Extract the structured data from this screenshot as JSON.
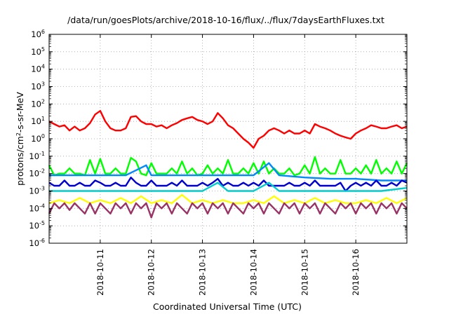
{
  "chart_data": {
    "type": "line",
    "title": "/data/run/goesPlots/archive/2018-10-16/flux/../flux/7daysEarthFluxes.txt",
    "xlabel": "Coordinated Universal Time (UTC)",
    "ylabel_parts": [
      "protons/cm",
      "2",
      "-s-sr-MeV"
    ],
    "y_scale": "log",
    "ylim": [
      1e-06,
      1000000.0
    ],
    "y_ticks": [
      {
        "base": "10",
        "exp": "6"
      },
      {
        "base": "10",
        "exp": "5"
      },
      {
        "base": "10",
        "exp": "4"
      },
      {
        "base": "10",
        "exp": "3"
      },
      {
        "base": "10",
        "exp": "2"
      },
      {
        "base": "10",
        "exp": "1"
      },
      {
        "base": "10",
        "exp": "0"
      },
      {
        "base": "10",
        "exp": "-1"
      },
      {
        "base": "10",
        "exp": "-2"
      },
      {
        "base": "10",
        "exp": "-3"
      },
      {
        "base": "10",
        "exp": "-4"
      },
      {
        "base": "10",
        "exp": "-5"
      },
      {
        "base": "10",
        "exp": "-6"
      }
    ],
    "xlim_days": [
      0,
      7
    ],
    "x_ticks": [
      {
        "label": "2018-10-11",
        "day": 1
      },
      {
        "label": "2018-10-12",
        "day": 2
      },
      {
        "label": "2018-10-13",
        "day": 3
      },
      {
        "label": "2018-10-14",
        "day": 4
      },
      {
        "label": "2018-10-15",
        "day": 5
      },
      {
        "label": "2018-10-16",
        "day": 6
      }
    ],
    "grid": true,
    "series": [
      {
        "color": "#ff0000",
        "x": [
          0,
          0.1,
          0.2,
          0.3,
          0.4,
          0.5,
          0.6,
          0.7,
          0.8,
          0.9,
          1,
          1.1,
          1.2,
          1.3,
          1.4,
          1.5,
          1.6,
          1.7,
          1.8,
          1.9,
          2,
          2.1,
          2.2,
          2.3,
          2.4,
          2.5,
          2.6,
          2.7,
          2.8,
          2.9,
          3,
          3.1,
          3.2,
          3.3,
          3.4,
          3.5,
          3.6,
          3.7,
          3.8,
          3.9,
          4,
          4.1,
          4.2,
          4.3,
          4.4,
          4.5,
          4.6,
          4.7,
          4.8,
          4.9,
          5,
          5.1,
          5.2,
          5.3,
          5.4,
          5.5,
          5.6,
          5.7,
          5.8,
          5.9,
          6,
          6.1,
          6.2,
          6.3,
          6.4,
          6.5,
          6.6,
          6.7,
          6.8,
          6.9,
          7
        ],
        "y": [
          10,
          7,
          5,
          6,
          3,
          5,
          3,
          4,
          8,
          25,
          40,
          10,
          4,
          3,
          3,
          4,
          18,
          20,
          10,
          7,
          7,
          5,
          6,
          4,
          6,
          8,
          12,
          15,
          18,
          12,
          10,
          7,
          10,
          30,
          15,
          6,
          4,
          2,
          1,
          0.6,
          0.3,
          1,
          1.5,
          3,
          4,
          3,
          2,
          3,
          2,
          2,
          3,
          2,
          7,
          5,
          4,
          3,
          2,
          1.5,
          1.2,
          1,
          2,
          3,
          4,
          6,
          5,
          4,
          4,
          5,
          6,
          4,
          5
        ]
      },
      {
        "color": "#00ff00",
        "x": [
          0,
          0.1,
          0.2,
          0.3,
          0.4,
          0.5,
          0.6,
          0.7,
          0.8,
          0.9,
          1,
          1.1,
          1.2,
          1.3,
          1.4,
          1.5,
          1.6,
          1.7,
          1.8,
          1.9,
          2,
          2.1,
          2.2,
          2.3,
          2.4,
          2.5,
          2.6,
          2.7,
          2.8,
          2.9,
          3,
          3.1,
          3.2,
          3.3,
          3.4,
          3.5,
          3.6,
          3.7,
          3.8,
          3.9,
          4,
          4.1,
          4.2,
          4.3,
          4.4,
          4.5,
          4.6,
          4.7,
          4.8,
          4.9,
          5,
          5.1,
          5.2,
          5.3,
          5.4,
          5.5,
          5.6,
          5.7,
          5.8,
          5.9,
          6,
          6.1,
          6.2,
          6.3,
          6.4,
          6.5,
          6.6,
          6.7,
          6.8,
          6.9,
          7
        ],
        "y": [
          0.03,
          0.008,
          0.01,
          0.01,
          0.02,
          0.01,
          0.01,
          0.008,
          0.06,
          0.01,
          0.07,
          0.01,
          0.01,
          0.02,
          0.01,
          0.01,
          0.08,
          0.05,
          0.01,
          0.008,
          0.04,
          0.01,
          0.01,
          0.01,
          0.02,
          0.01,
          0.05,
          0.01,
          0.02,
          0.008,
          0.01,
          0.03,
          0.01,
          0.02,
          0.01,
          0.06,
          0.01,
          0.01,
          0.02,
          0.01,
          0.04,
          0.01,
          0.05,
          0.01,
          0.02,
          0.01,
          0.01,
          0.02,
          0.008,
          0.01,
          0.03,
          0.01,
          0.09,
          0.01,
          0.02,
          0.01,
          0.01,
          0.06,
          0.01,
          0.01,
          0.02,
          0.01,
          0.03,
          0.01,
          0.06,
          0.01,
          0.02,
          0.01,
          0.05,
          0.01,
          0.04
        ]
      },
      {
        "color": "#0088ff",
        "x": [
          0,
          0.5,
          1,
          1.5,
          1.9,
          2,
          2.5,
          3,
          3.5,
          4,
          4.3,
          4.5,
          5,
          5.5,
          6,
          6.5,
          7
        ],
        "y": [
          0.008,
          0.008,
          0.008,
          0.008,
          0.03,
          0.008,
          0.008,
          0.008,
          0.008,
          0.008,
          0.04,
          0.008,
          0.006,
          0.005,
          0.005,
          0.004,
          0.004
        ]
      },
      {
        "color": "#0000cc",
        "x": [
          0,
          0.1,
          0.2,
          0.3,
          0.4,
          0.5,
          0.6,
          0.7,
          0.8,
          0.9,
          1,
          1.1,
          1.2,
          1.3,
          1.4,
          1.5,
          1.6,
          1.7,
          1.8,
          1.9,
          2,
          2.1,
          2.2,
          2.3,
          2.4,
          2.5,
          2.6,
          2.7,
          2.8,
          2.9,
          3,
          3.1,
          3.2,
          3.3,
          3.4,
          3.5,
          3.6,
          3.7,
          3.8,
          3.9,
          4,
          4.1,
          4.2,
          4.3,
          4.4,
          4.5,
          4.6,
          4.7,
          4.8,
          4.9,
          5,
          5.1,
          5.2,
          5.3,
          5.4,
          5.5,
          5.6,
          5.7,
          5.8,
          5.9,
          6,
          6.1,
          6.2,
          6.3,
          6.4,
          6.5,
          6.6,
          6.7,
          6.8,
          6.9,
          7
        ],
        "y": [
          0.003,
          0.002,
          0.002,
          0.004,
          0.002,
          0.002,
          0.003,
          0.002,
          0.002,
          0.004,
          0.003,
          0.002,
          0.002,
          0.003,
          0.002,
          0.002,
          0.006,
          0.003,
          0.002,
          0.002,
          0.004,
          0.002,
          0.002,
          0.002,
          0.003,
          0.002,
          0.004,
          0.002,
          0.002,
          0.002,
          0.003,
          0.002,
          0.003,
          0.005,
          0.002,
          0.003,
          0.002,
          0.002,
          0.003,
          0.002,
          0.003,
          0.002,
          0.004,
          0.002,
          0.002,
          0.002,
          0.002,
          0.003,
          0.002,
          0.002,
          0.003,
          0.002,
          0.004,
          0.002,
          0.002,
          0.002,
          0.002,
          0.003,
          0.001,
          0.002,
          0.003,
          0.002,
          0.003,
          0.002,
          0.004,
          0.002,
          0.002,
          0.003,
          0.002,
          0.004,
          0.003
        ]
      },
      {
        "color": "#00cccc",
        "x": [
          0,
          0.5,
          1,
          1.5,
          2,
          2.5,
          3,
          3.3,
          3.5,
          4,
          4.3,
          4.5,
          5,
          5.5,
          6,
          6.5,
          7
        ],
        "y": [
          0.001,
          0.001,
          0.001,
          0.001,
          0.001,
          0.001,
          0.001,
          0.003,
          0.001,
          0.001,
          0.003,
          0.001,
          0.001,
          0.001,
          0.001,
          0.001,
          0.0015
        ]
      },
      {
        "color": "#ffff00",
        "x": [
          0,
          0.2,
          0.4,
          0.6,
          0.8,
          1,
          1.2,
          1.4,
          1.6,
          1.8,
          2,
          2.2,
          2.4,
          2.6,
          2.8,
          3,
          3.2,
          3.4,
          3.6,
          3.8,
          4,
          4.2,
          4.4,
          4.6,
          4.8,
          5,
          5.2,
          5.4,
          5.6,
          5.8,
          6,
          6.2,
          6.4,
          6.6,
          6.8,
          7
        ],
        "y": [
          0.0002,
          0.0003,
          0.0002,
          0.0004,
          0.0002,
          0.0003,
          0.0002,
          0.0004,
          0.0002,
          0.0005,
          0.0002,
          0.0003,
          0.0002,
          0.0006,
          0.0002,
          0.0003,
          0.0002,
          0.0003,
          0.0002,
          0.0002,
          0.0003,
          0.0002,
          0.0005,
          0.0002,
          0.0003,
          0.0002,
          0.0004,
          0.0002,
          0.0003,
          0.0002,
          0.0002,
          0.0003,
          0.0002,
          0.0004,
          0.0002,
          0.0004
        ]
      },
      {
        "color": "#993366",
        "x": [
          0,
          0.1,
          0.2,
          0.3,
          0.4,
          0.5,
          0.6,
          0.7,
          0.8,
          0.9,
          1,
          1.1,
          1.2,
          1.3,
          1.4,
          1.5,
          1.6,
          1.7,
          1.8,
          1.9,
          2,
          2.1,
          2.2,
          2.3,
          2.4,
          2.5,
          2.6,
          2.7,
          2.8,
          2.9,
          3,
          3.1,
          3.2,
          3.3,
          3.4,
          3.5,
          3.6,
          3.7,
          3.8,
          3.9,
          4,
          4.1,
          4.2,
          4.3,
          4.4,
          4.5,
          4.6,
          4.7,
          4.8,
          4.9,
          5,
          5.1,
          5.2,
          5.3,
          5.4,
          5.5,
          5.6,
          5.7,
          5.8,
          5.9,
          6,
          6.1,
          6.2,
          6.3,
          6.4,
          6.5,
          6.6,
          6.7,
          6.8,
          6.9,
          7
        ],
        "y": [
          5e-05,
          0.0002,
          0.0001,
          0.0002,
          8e-05,
          0.0002,
          0.0001,
          5e-05,
          0.0002,
          5e-05,
          0.0002,
          0.0001,
          5e-05,
          0.0002,
          0.0001,
          0.0002,
          5e-05,
          0.0002,
          0.0001,
          0.0002,
          3e-05,
          0.0002,
          0.0001,
          0.0002,
          5e-05,
          0.0002,
          0.0001,
          5e-05,
          0.0002,
          0.0001,
          0.0002,
          5e-05,
          0.0002,
          0.0001,
          0.0002,
          5e-05,
          0.0002,
          0.0001,
          5e-05,
          0.0002,
          0.0001,
          0.0002,
          5e-05,
          0.0002,
          0.0001,
          5e-05,
          0.0002,
          0.0001,
          0.0002,
          5e-05,
          0.0002,
          0.0001,
          0.0002,
          5e-05,
          0.0002,
          0.0001,
          5e-05,
          0.0002,
          0.0001,
          0.0002,
          5e-05,
          0.0002,
          0.0001,
          0.0002,
          5e-05,
          0.0002,
          0.0001,
          0.0002,
          5e-05,
          0.0002,
          0.0001
        ]
      }
    ]
  }
}
